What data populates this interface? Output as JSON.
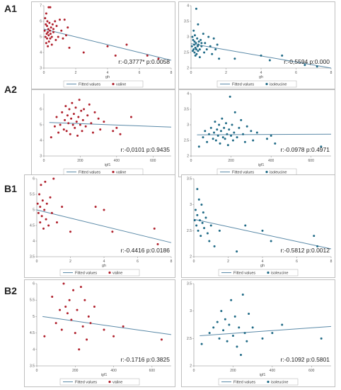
{
  "panel_labels": [
    "A1",
    "A2",
    "B1",
    "B2"
  ],
  "colors": {
    "valine": "#b0202c",
    "isoleucine": "#1f6a86",
    "fit": "#5b8aa8"
  },
  "chart_data": [
    {
      "type": "scatter",
      "group": "A1",
      "xlabel": "gh",
      "ylabel": "",
      "xlim": [
        0,
        8
      ],
      "ylim": [
        3,
        7
      ],
      "xticks": [
        "0",
        "2",
        "4",
        "6",
        "8"
      ],
      "yticks": [
        "3",
        "4",
        "5",
        "6",
        "7"
      ],
      "annotation": "r:-0,3777*   p:0.0058",
      "legend": [
        "Fitted values",
        "valine"
      ],
      "color": "valine",
      "fit": [
        [
          0,
          5.5
        ],
        [
          8,
          3.5
        ]
      ],
      "points": [
        [
          0.05,
          5.4
        ],
        [
          0.08,
          6.2
        ],
        [
          0.1,
          5.0
        ],
        [
          0.12,
          5.8
        ],
        [
          0.15,
          4.6
        ],
        [
          0.15,
          6.5
        ],
        [
          0.18,
          5.2
        ],
        [
          0.2,
          4.9
        ],
        [
          0.2,
          5.7
        ],
        [
          0.22,
          6.0
        ],
        [
          0.25,
          5.3
        ],
        [
          0.25,
          4.4
        ],
        [
          0.28,
          5.5
        ],
        [
          0.3,
          6.9
        ],
        [
          0.3,
          5.1
        ],
        [
          0.32,
          4.7
        ],
        [
          0.35,
          5.9
        ],
        [
          0.38,
          5.4
        ],
        [
          0.4,
          6.9
        ],
        [
          0.4,
          4.9
        ],
        [
          0.42,
          5.2
        ],
        [
          0.45,
          5.6
        ],
        [
          0.5,
          5.0
        ],
        [
          0.5,
          4.5
        ],
        [
          0.55,
          5.8
        ],
        [
          0.6,
          5.3
        ],
        [
          0.6,
          5.5
        ],
        [
          0.7,
          6.0
        ],
        [
          0.75,
          4.8
        ],
        [
          0.8,
          5.7
        ],
        [
          0.9,
          5.0
        ],
        [
          1.0,
          6.1
        ],
        [
          1.1,
          5.4
        ],
        [
          1.2,
          4.9
        ],
        [
          1.3,
          6.1
        ],
        [
          1.4,
          5.1
        ],
        [
          1.5,
          5.6
        ],
        [
          1.6,
          4.3
        ],
        [
          2.5,
          4.0
        ],
        [
          4.0,
          4.4
        ],
        [
          4.5,
          3.8
        ],
        [
          5.2,
          4.5
        ],
        [
          6.5,
          3.8
        ],
        [
          7.2,
          3.6
        ]
      ]
    },
    {
      "type": "scatter",
      "group": "A1",
      "xlabel": "gh",
      "ylabel": "",
      "xlim": [
        0,
        8
      ],
      "ylim": [
        2,
        4
      ],
      "xticks": [
        "0",
        "2",
        "4",
        "6",
        "8"
      ],
      "yticks": [
        "2",
        "2.5",
        "3",
        "3.5",
        "4"
      ],
      "annotation": "r:-0,5594   p:0.000",
      "legend": [
        "Fitted values",
        "isoleucine"
      ],
      "color": "isoleucine",
      "fit": [
        [
          0,
          2.78
        ],
        [
          8,
          2.0
        ]
      ],
      "points": [
        [
          0.05,
          2.7
        ],
        [
          0.08,
          3.0
        ],
        [
          0.1,
          2.55
        ],
        [
          0.12,
          2.9
        ],
        [
          0.15,
          2.6
        ],
        [
          0.15,
          3.2
        ],
        [
          0.18,
          2.75
        ],
        [
          0.2,
          2.5
        ],
        [
          0.2,
          2.85
        ],
        [
          0.22,
          3.05
        ],
        [
          0.25,
          2.65
        ],
        [
          0.25,
          2.4
        ],
        [
          0.28,
          2.8
        ],
        [
          0.3,
          3.9
        ],
        [
          0.3,
          2.6
        ],
        [
          0.32,
          2.45
        ],
        [
          0.35,
          2.95
        ],
        [
          0.38,
          2.7
        ],
        [
          0.4,
          3.4
        ],
        [
          0.4,
          2.55
        ],
        [
          0.42,
          2.75
        ],
        [
          0.45,
          2.85
        ],
        [
          0.5,
          2.6
        ],
        [
          0.5,
          2.35
        ],
        [
          0.55,
          2.9
        ],
        [
          0.6,
          2.7
        ],
        [
          0.6,
          2.8
        ],
        [
          0.7,
          3.1
        ],
        [
          0.75,
          2.5
        ],
        [
          0.8,
          2.8
        ],
        [
          0.9,
          2.6
        ],
        [
          1.0,
          3.0
        ],
        [
          1.1,
          2.7
        ],
        [
          1.2,
          2.45
        ],
        [
          1.3,
          2.95
        ],
        [
          1.4,
          2.6
        ],
        [
          1.5,
          2.75
        ],
        [
          1.6,
          2.3
        ],
        [
          2.5,
          2.3
        ],
        [
          4.0,
          2.4
        ],
        [
          4.5,
          2.25
        ],
        [
          5.2,
          2.4
        ],
        [
          6.5,
          2.1
        ],
        [
          7.2,
          2.05
        ]
      ]
    },
    {
      "type": "scatter",
      "group": "A2",
      "xlabel": "igf1",
      "ylabel": "",
      "xlim": [
        0,
        700
      ],
      "ylim": [
        3,
        7
      ],
      "xticks": [
        "0",
        "200",
        "400",
        "600"
      ],
      "yticks": [
        "3",
        "4",
        "5",
        "6"
      ],
      "annotation": "r:-0,0101   p:0.9435",
      "legend": [
        "Fitted values",
        "valine"
      ],
      "color": "valine",
      "fit": [
        [
          30,
          5.15
        ],
        [
          700,
          4.85
        ]
      ],
      "points": [
        [
          40,
          4.2
        ],
        [
          60,
          4.9
        ],
        [
          70,
          5.5
        ],
        [
          80,
          4.5
        ],
        [
          90,
          5.0
        ],
        [
          100,
          5.8
        ],
        [
          110,
          4.7
        ],
        [
          115,
          5.3
        ],
        [
          120,
          6.2
        ],
        [
          125,
          4.6
        ],
        [
          130,
          5.6
        ],
        [
          135,
          5.1
        ],
        [
          140,
          6.0
        ],
        [
          145,
          4.4
        ],
        [
          150,
          5.4
        ],
        [
          155,
          6.4
        ],
        [
          160,
          5.0
        ],
        [
          165,
          5.7
        ],
        [
          170,
          4.8
        ],
        [
          175,
          6.1
        ],
        [
          180,
          5.2
        ],
        [
          185,
          4.3
        ],
        [
          190,
          5.5
        ],
        [
          195,
          6.6
        ],
        [
          200,
          5.0
        ],
        [
          205,
          5.9
        ],
        [
          210,
          4.6
        ],
        [
          215,
          5.3
        ],
        [
          220,
          6.0
        ],
        [
          230,
          4.9
        ],
        [
          240,
          5.6
        ],
        [
          250,
          6.3
        ],
        [
          260,
          5.1
        ],
        [
          270,
          4.5
        ],
        [
          280,
          5.8
        ],
        [
          300,
          5.4
        ],
        [
          310,
          4.7
        ],
        [
          330,
          5.2
        ],
        [
          380,
          4.6
        ],
        [
          400,
          4.8
        ],
        [
          420,
          4.4
        ],
        [
          480,
          5.5
        ]
      ]
    },
    {
      "type": "scatter",
      "group": "A2",
      "xlabel": "igf1",
      "ylabel": "",
      "xlim": [
        0,
        700
      ],
      "ylim": [
        2,
        4
      ],
      "xticks": [
        "0",
        "200",
        "400",
        "600"
      ],
      "yticks": [
        "2",
        "2.5",
        "3",
        "3.5",
        "4"
      ],
      "annotation": "r:-0.0978   p:0.4971",
      "legend": [
        "Fitted values",
        "isoleucine"
      ],
      "color": "isoleucine",
      "fit": [
        [
          30,
          2.68
        ],
        [
          700,
          2.7
        ]
      ],
      "points": [
        [
          40,
          2.3
        ],
        [
          60,
          2.6
        ],
        [
          70,
          2.8
        ],
        [
          80,
          2.45
        ],
        [
          90,
          2.7
        ],
        [
          100,
          2.9
        ],
        [
          110,
          2.55
        ],
        [
          115,
          2.75
        ],
        [
          120,
          3.1
        ],
        [
          125,
          2.5
        ],
        [
          130,
          2.85
        ],
        [
          135,
          2.65
        ],
        [
          140,
          3.0
        ],
        [
          145,
          2.4
        ],
        [
          150,
          2.8
        ],
        [
          155,
          3.2
        ],
        [
          160,
          2.6
        ],
        [
          165,
          2.9
        ],
        [
          170,
          2.55
        ],
        [
          175,
          3.05
        ],
        [
          180,
          2.7
        ],
        [
          185,
          2.35
        ],
        [
          190,
          2.85
        ],
        [
          195,
          3.9
        ],
        [
          200,
          2.65
        ],
        [
          205,
          3.0
        ],
        [
          210,
          2.5
        ],
        [
          215,
          2.75
        ],
        [
          220,
          3.4
        ],
        [
          230,
          2.6
        ],
        [
          240,
          2.9
        ],
        [
          250,
          3.15
        ],
        [
          260,
          2.7
        ],
        [
          270,
          2.45
        ],
        [
          280,
          2.95
        ],
        [
          300,
          2.8
        ],
        [
          310,
          2.5
        ],
        [
          330,
          2.75
        ],
        [
          380,
          2.55
        ],
        [
          400,
          2.65
        ],
        [
          420,
          2.4
        ],
        [
          650,
          2.3
        ]
      ]
    },
    {
      "type": "scatter",
      "group": "B1",
      "xlabel": "gh",
      "ylabel": "",
      "xlim": [
        0,
        8
      ],
      "ylim": [
        3.5,
        6
      ],
      "xticks": [
        "0",
        "2",
        "4",
        "6",
        "8"
      ],
      "yticks": [
        "3.5",
        "4",
        "4.5",
        "5",
        "5.5",
        "6"
      ],
      "annotation": "r:-0.4416  p:0.0186",
      "legend": [
        "Fitted values",
        "valine"
      ],
      "color": "valine",
      "fit": [
        [
          0,
          5.0
        ],
        [
          8,
          3.95
        ]
      ],
      "points": [
        [
          0.05,
          5.2
        ],
        [
          0.1,
          4.9
        ],
        [
          0.15,
          5.5
        ],
        [
          0.2,
          4.6
        ],
        [
          0.2,
          5.1
        ],
        [
          0.25,
          5.8
        ],
        [
          0.3,
          4.8
        ],
        [
          0.35,
          5.3
        ],
        [
          0.4,
          4.4
        ],
        [
          0.45,
          5.0
        ],
        [
          0.5,
          5.9
        ],
        [
          0.55,
          4.7
        ],
        [
          0.6,
          5.2
        ],
        [
          0.7,
          4.5
        ],
        [
          0.8,
          5.4
        ],
        [
          0.9,
          4.9
        ],
        [
          1.0,
          6.0
        ],
        [
          1.2,
          4.6
        ],
        [
          1.5,
          5.1
        ],
        [
          2.0,
          4.3
        ],
        [
          3.5,
          5.1
        ],
        [
          4.0,
          5.0
        ],
        [
          4.5,
          4.3
        ],
        [
          7.0,
          4.4
        ],
        [
          7.2,
          3.9
        ]
      ]
    },
    {
      "type": "scatter",
      "group": "B1",
      "xlabel": "gh",
      "ylabel": "",
      "xlim": [
        0,
        8
      ],
      "ylim": [
        2,
        3.5
      ],
      "xticks": [
        "0",
        "2",
        "4",
        "6",
        "8"
      ],
      "yticks": [
        "2",
        "2.5",
        "3",
        "3.5"
      ],
      "annotation": "r:-0.5812   p:0.0012",
      "legend": [
        "Fitted values",
        "isoleucine"
      ],
      "color": "isoleucine",
      "fit": [
        [
          0,
          2.72
        ],
        [
          8,
          2.15
        ]
      ],
      "points": [
        [
          0.05,
          2.7
        ],
        [
          0.1,
          2.9
        ],
        [
          0.15,
          2.6
        ],
        [
          0.2,
          3.3
        ],
        [
          0.2,
          2.8
        ],
        [
          0.25,
          2.5
        ],
        [
          0.3,
          3.1
        ],
        [
          0.35,
          2.7
        ],
        [
          0.4,
          2.4
        ],
        [
          0.45,
          3.0
        ],
        [
          0.5,
          2.65
        ],
        [
          0.55,
          2.85
        ],
        [
          0.6,
          2.55
        ],
        [
          0.7,
          2.75
        ],
        [
          0.8,
          2.45
        ],
        [
          0.9,
          2.3
        ],
        [
          1.0,
          2.6
        ],
        [
          1.2,
          2.2
        ],
        [
          1.5,
          2.5
        ],
        [
          2.5,
          2.1
        ],
        [
          3.0,
          2.6
        ],
        [
          4.0,
          2.5
        ],
        [
          4.5,
          2.3
        ],
        [
          7.0,
          2.4
        ],
        [
          7.2,
          2.2
        ]
      ]
    },
    {
      "type": "scatter",
      "group": "B2",
      "xlabel": "igf1",
      "ylabel": "",
      "xlim": [
        0,
        700
      ],
      "ylim": [
        3.5,
        6
      ],
      "xticks": [
        "0",
        "200",
        "400",
        "600"
      ],
      "yticks": [
        "3.5",
        "4",
        "4.5",
        "5",
        "5.5",
        "6"
      ],
      "annotation": "r:-0.1716  p:0.3825",
      "legend": [
        "Fitted values",
        "valine"
      ],
      "color": "valine",
      "fit": [
        [
          30,
          5.0
        ],
        [
          700,
          4.45
        ]
      ],
      "points": [
        [
          40,
          4.4
        ],
        [
          80,
          5.6
        ],
        [
          100,
          4.8
        ],
        [
          120,
          5.2
        ],
        [
          130,
          4.6
        ],
        [
          140,
          6.0
        ],
        [
          150,
          5.3
        ],
        [
          160,
          5.1
        ],
        [
          170,
          5.5
        ],
        [
          180,
          4.9
        ],
        [
          190,
          5.8
        ],
        [
          200,
          4.5
        ],
        [
          210,
          5.2
        ],
        [
          220,
          4.0
        ],
        [
          230,
          5.9
        ],
        [
          240,
          4.7
        ],
        [
          250,
          5.5
        ],
        [
          260,
          4.3
        ],
        [
          270,
          5.0
        ],
        [
          280,
          4.8
        ],
        [
          300,
          5.3
        ],
        [
          350,
          4.6
        ],
        [
          400,
          4.4
        ],
        [
          450,
          4.7
        ],
        [
          650,
          4.3
        ]
      ]
    },
    {
      "type": "scatter",
      "group": "B2",
      "xlabel": "igf1",
      "ylabel": "",
      "xlim": [
        0,
        700
      ],
      "ylim": [
        2,
        3.5
      ],
      "xticks": [
        "0",
        "200",
        "400",
        "600"
      ],
      "yticks": [
        "2",
        "2.5",
        "3",
        "3.5"
      ],
      "annotation": "r:-0.1092   p:0.5801",
      "legend": [
        "Fitted values",
        "isoleucine"
      ],
      "color": "isoleucine",
      "fit": [
        [
          30,
          2.55
        ],
        [
          700,
          2.72
        ]
      ],
      "points": [
        [
          40,
          2.4
        ],
        [
          80,
          2.6
        ],
        [
          100,
          2.7
        ],
        [
          120,
          2.8
        ],
        [
          130,
          2.5
        ],
        [
          140,
          3.0
        ],
        [
          150,
          2.65
        ],
        [
          160,
          2.85
        ],
        [
          170,
          2.45
        ],
        [
          180,
          2.75
        ],
        [
          190,
          3.2
        ],
        [
          200,
          2.55
        ],
        [
          210,
          2.9
        ],
        [
          220,
          2.35
        ],
        [
          230,
          2.7
        ],
        [
          240,
          2.2
        ],
        [
          250,
          3.3
        ],
        [
          260,
          2.6
        ],
        [
          270,
          2.45
        ],
        [
          280,
          2.95
        ],
        [
          300,
          2.7
        ],
        [
          350,
          2.5
        ],
        [
          400,
          2.6
        ],
        [
          450,
          2.75
        ],
        [
          650,
          2.5
        ]
      ]
    }
  ]
}
